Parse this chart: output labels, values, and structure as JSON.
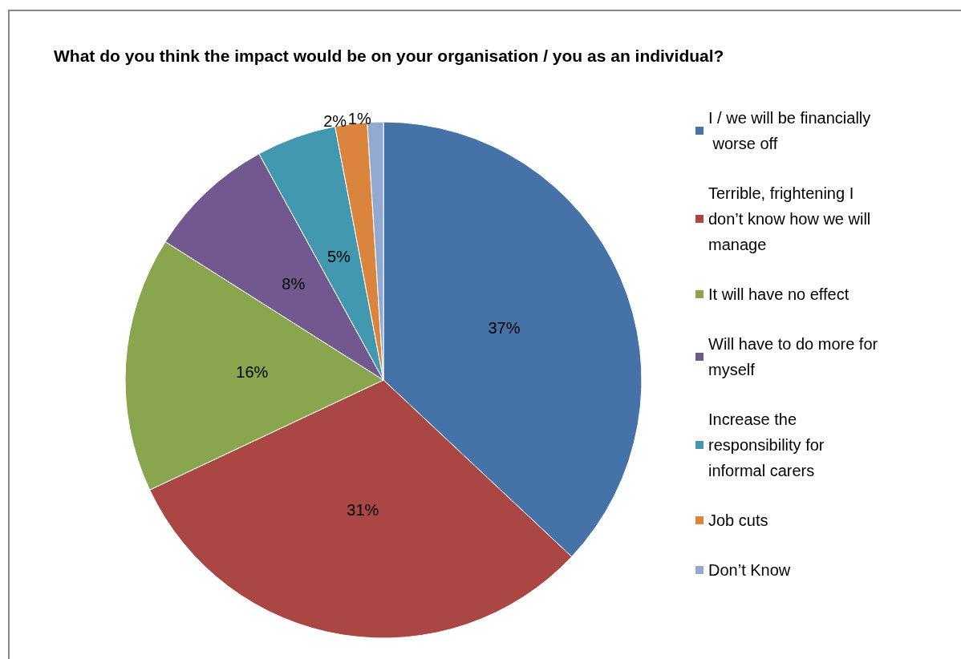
{
  "chart_data": {
    "type": "pie",
    "title": "What do you think the impact would be on your organisation / you as an individual?",
    "categories": [
      "I / we will be financially worse off",
      "Terrible, frightening I don’t know how we will manage",
      "It will have no effect",
      "Will have to do more for myself",
      "Increase the responsibility for informal carers",
      "Job cuts",
      "Don’t Know"
    ],
    "values": [
      37,
      31,
      16,
      8,
      5,
      2,
      1
    ],
    "colors": [
      "#4572a7",
      "#aa4643",
      "#89a54e",
      "#71588f",
      "#4198af",
      "#db843d",
      "#93a9cf"
    ],
    "value_labels": [
      "37%",
      "31%",
      "16%",
      "8%",
      "5%",
      "2%",
      "1%"
    ],
    "legend": "right"
  }
}
